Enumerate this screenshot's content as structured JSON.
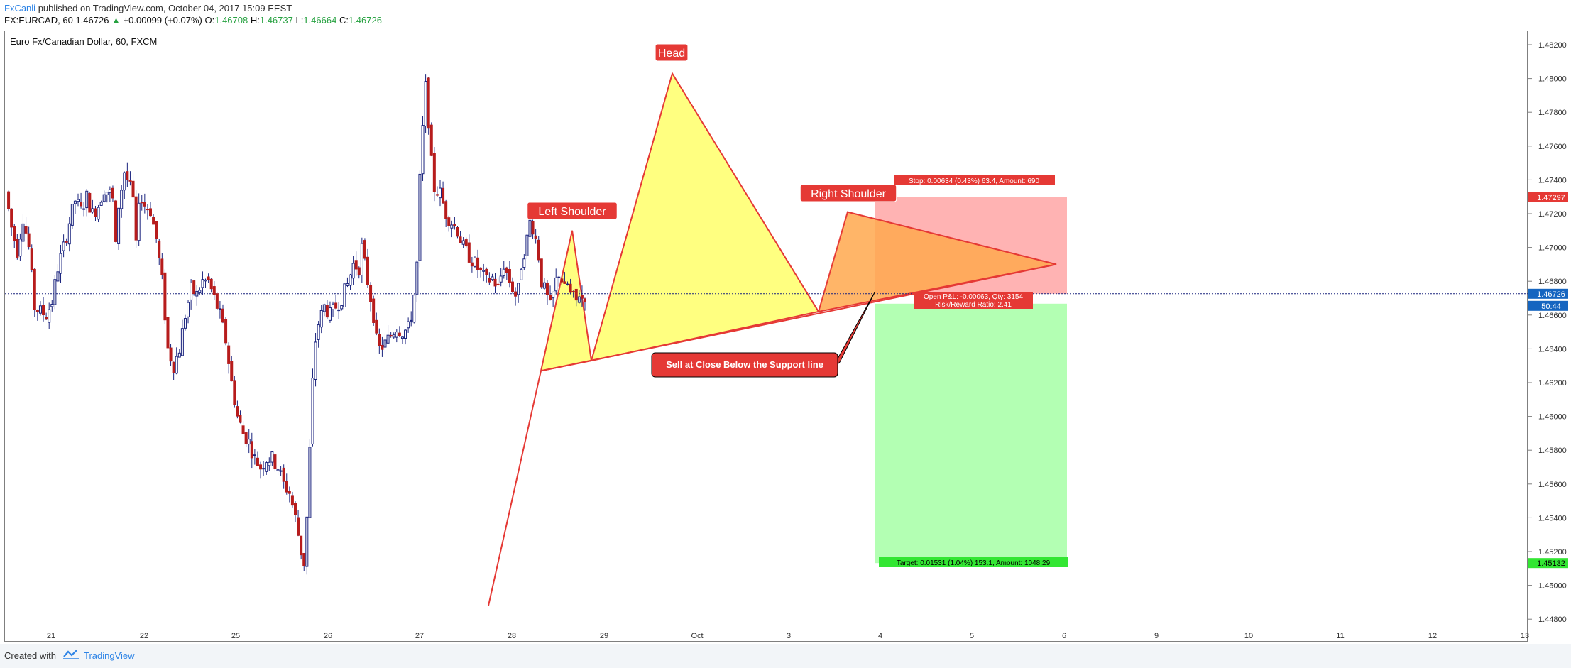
{
  "header": {
    "author": "FxCanli",
    "published": " published on TradingView.com, October 04, 2017 15:09 EEST",
    "symbol": "FX:EURCAD, 60",
    "last": "1.46726",
    "change": "+0.00099 (+0.07%)",
    "o_label": "O:",
    "o_value": "1.46708",
    "h_label": "H:",
    "h_value": "1.46737",
    "l_label": "L:",
    "l_value": "1.46664",
    "c_label": "C:",
    "c_value": "1.46726"
  },
  "footer": {
    "created": "Created with",
    "brand": "TradingView"
  },
  "chart_data": {
    "type": "candlestick",
    "title": "Euro Fx/Canadian Dollar, 60, FXCM",
    "ylim": [
      1.4465,
      1.4825
    ],
    "y_ticks": [
      "1.48200",
      "1.48000",
      "1.47800",
      "1.47600",
      "1.47400",
      "1.47200",
      "1.47000",
      "1.46800",
      "1.46600",
      "1.46400",
      "1.46200",
      "1.46000",
      "1.45800",
      "1.45600",
      "1.45400",
      "1.45200",
      "1.45000",
      "1.44800"
    ],
    "x_labels": [
      "21",
      "22",
      "25",
      "26",
      "27",
      "28",
      "29",
      "Oct",
      "3",
      "4",
      "5",
      "6",
      "9",
      "10",
      "11",
      "12",
      "13"
    ],
    "current_price": "1.46726",
    "countdown": "50:44",
    "stop_price": "1.47297",
    "target_price": "1.45132",
    "up_color": "#ffffff",
    "down_color": "#b71c1c",
    "wick_color": "#1a237e",
    "price_path": [
      [
        0,
        1.4733
      ],
      [
        2,
        1.4712
      ],
      [
        4,
        1.4698
      ],
      [
        6,
        1.4718
      ],
      [
        8,
        1.47
      ],
      [
        10,
        1.4665
      ],
      [
        12,
        1.4662
      ],
      [
        14,
        1.466
      ],
      [
        16,
        1.4668
      ],
      [
        18,
        1.4688
      ],
      [
        20,
        1.47
      ],
      [
        22,
        1.4715
      ],
      [
        24,
        1.4728
      ],
      [
        26,
        1.4722
      ],
      [
        28,
        1.473
      ],
      [
        30,
        1.472
      ],
      [
        32,
        1.4725
      ],
      [
        34,
        1.4735
      ],
      [
        36,
        1.4732
      ],
      [
        37,
        1.4728
      ],
      [
        38,
        1.47
      ],
      [
        39,
        1.4725
      ],
      [
        41,
        1.4745
      ],
      [
        43,
        1.4735
      ],
      [
        44,
        1.4728
      ],
      [
        45,
        1.47
      ],
      [
        46,
        1.473
      ],
      [
        48,
        1.4725
      ],
      [
        50,
        1.4722
      ],
      [
        52,
        1.4705
      ],
      [
        54,
        1.468
      ],
      [
        55,
        1.466
      ],
      [
        56,
        1.464
      ],
      [
        58,
        1.463
      ],
      [
        60,
        1.464
      ],
      [
        62,
        1.466
      ],
      [
        64,
        1.4675
      ],
      [
        66,
        1.4672
      ],
      [
        68,
        1.468
      ],
      [
        70,
        1.468
      ],
      [
        72,
        1.467
      ],
      [
        74,
        1.466
      ],
      [
        76,
        1.4645
      ],
      [
        78,
        1.462
      ],
      [
        80,
        1.46
      ],
      [
        82,
        1.459
      ],
      [
        84,
        1.4585
      ],
      [
        86,
        1.4575
      ],
      [
        88,
        1.457
      ],
      [
        90,
        1.4575
      ],
      [
        92,
        1.4575
      ],
      [
        94,
        1.457
      ],
      [
        96,
        1.456
      ],
      [
        98,
        1.4555
      ],
      [
        100,
        1.454
      ],
      [
        102,
        1.452
      ],
      [
        103,
        1.4513
      ],
      [
        104,
        1.454
      ],
      [
        105,
        1.458
      ],
      [
        106,
        1.462
      ],
      [
        107,
        1.4645
      ],
      [
        108,
        1.4655
      ],
      [
        110,
        1.4665
      ],
      [
        112,
        1.466
      ],
      [
        114,
        1.4665
      ],
      [
        116,
        1.467
      ],
      [
        118,
        1.4678
      ],
      [
        120,
        1.469
      ],
      [
        122,
        1.4688
      ],
      [
        123,
        1.47
      ],
      [
        124,
        1.469
      ],
      [
        125,
        1.468
      ],
      [
        126,
        1.467
      ],
      [
        127,
        1.466
      ],
      [
        128,
        1.4645
      ],
      [
        129,
        1.464
      ],
      [
        131,
        1.4643
      ],
      [
        133,
        1.4648
      ],
      [
        135,
        1.4653
      ],
      [
        137,
        1.465
      ],
      [
        139,
        1.4652
      ],
      [
        140,
        1.466
      ],
      [
        141,
        1.4672
      ],
      [
        142,
        1.469
      ],
      [
        143,
        1.474
      ],
      [
        144,
        1.477
      ],
      [
        145,
        1.4795
      ],
      [
        146,
        1.4775
      ],
      [
        147,
        1.475
      ],
      [
        148,
        1.4735
      ],
      [
        150,
        1.4732
      ],
      [
        152,
        1.472
      ],
      [
        154,
        1.4715
      ],
      [
        156,
        1.471
      ],
      [
        158,
        1.47
      ],
      [
        160,
        1.4695
      ],
      [
        162,
        1.469
      ],
      [
        164,
        1.4685
      ],
      [
        166,
        1.468
      ],
      [
        168,
        1.4682
      ],
      [
        170,
        1.4676
      ],
      [
        172,
        1.469
      ],
      [
        174,
        1.468
      ],
      [
        176,
        1.4672
      ],
      [
        177,
        1.4675
      ],
      [
        178,
        1.469
      ],
      [
        180,
        1.4705
      ],
      [
        181,
        1.4715
      ],
      [
        182,
        1.4712
      ],
      [
        183,
        1.4705
      ],
      [
        184,
        1.4695
      ],
      [
        185,
        1.468
      ],
      [
        186,
        1.4675
      ],
      [
        187,
        1.467
      ],
      [
        188,
        1.4665
      ],
      [
        189,
        1.4672
      ],
      [
        190,
        1.468
      ],
      [
        191,
        1.4685
      ],
      [
        192,
        1.4681
      ],
      [
        193,
        1.4675
      ],
      [
        194,
        1.4678
      ],
      [
        195,
        1.4672
      ],
      [
        196,
        1.467
      ],
      [
        197,
        1.4668
      ],
      [
        198,
        1.4673
      ],
      [
        199,
        1.467
      ],
      [
        200,
        1.4672
      ]
    ],
    "x_bar_range": [
      0,
      228
    ],
    "annotations": {
      "left_shoulder": "Left Shoulder",
      "head": "Head",
      "right_shoulder": "Right Shoulder",
      "callout": "Sell at Close Below the Support line",
      "stop_label": "Stop: 0.00634 (0.43%) 63.4, Amount: 690",
      "open_pl_label": "Open P&L: -0.00063, Qty: 3154",
      "rr_label": "Risk/Reward Ratio: 2.41",
      "target_label": "Target: 0.01531 (1.04%) 153.1, Amount: 1048.29"
    }
  }
}
